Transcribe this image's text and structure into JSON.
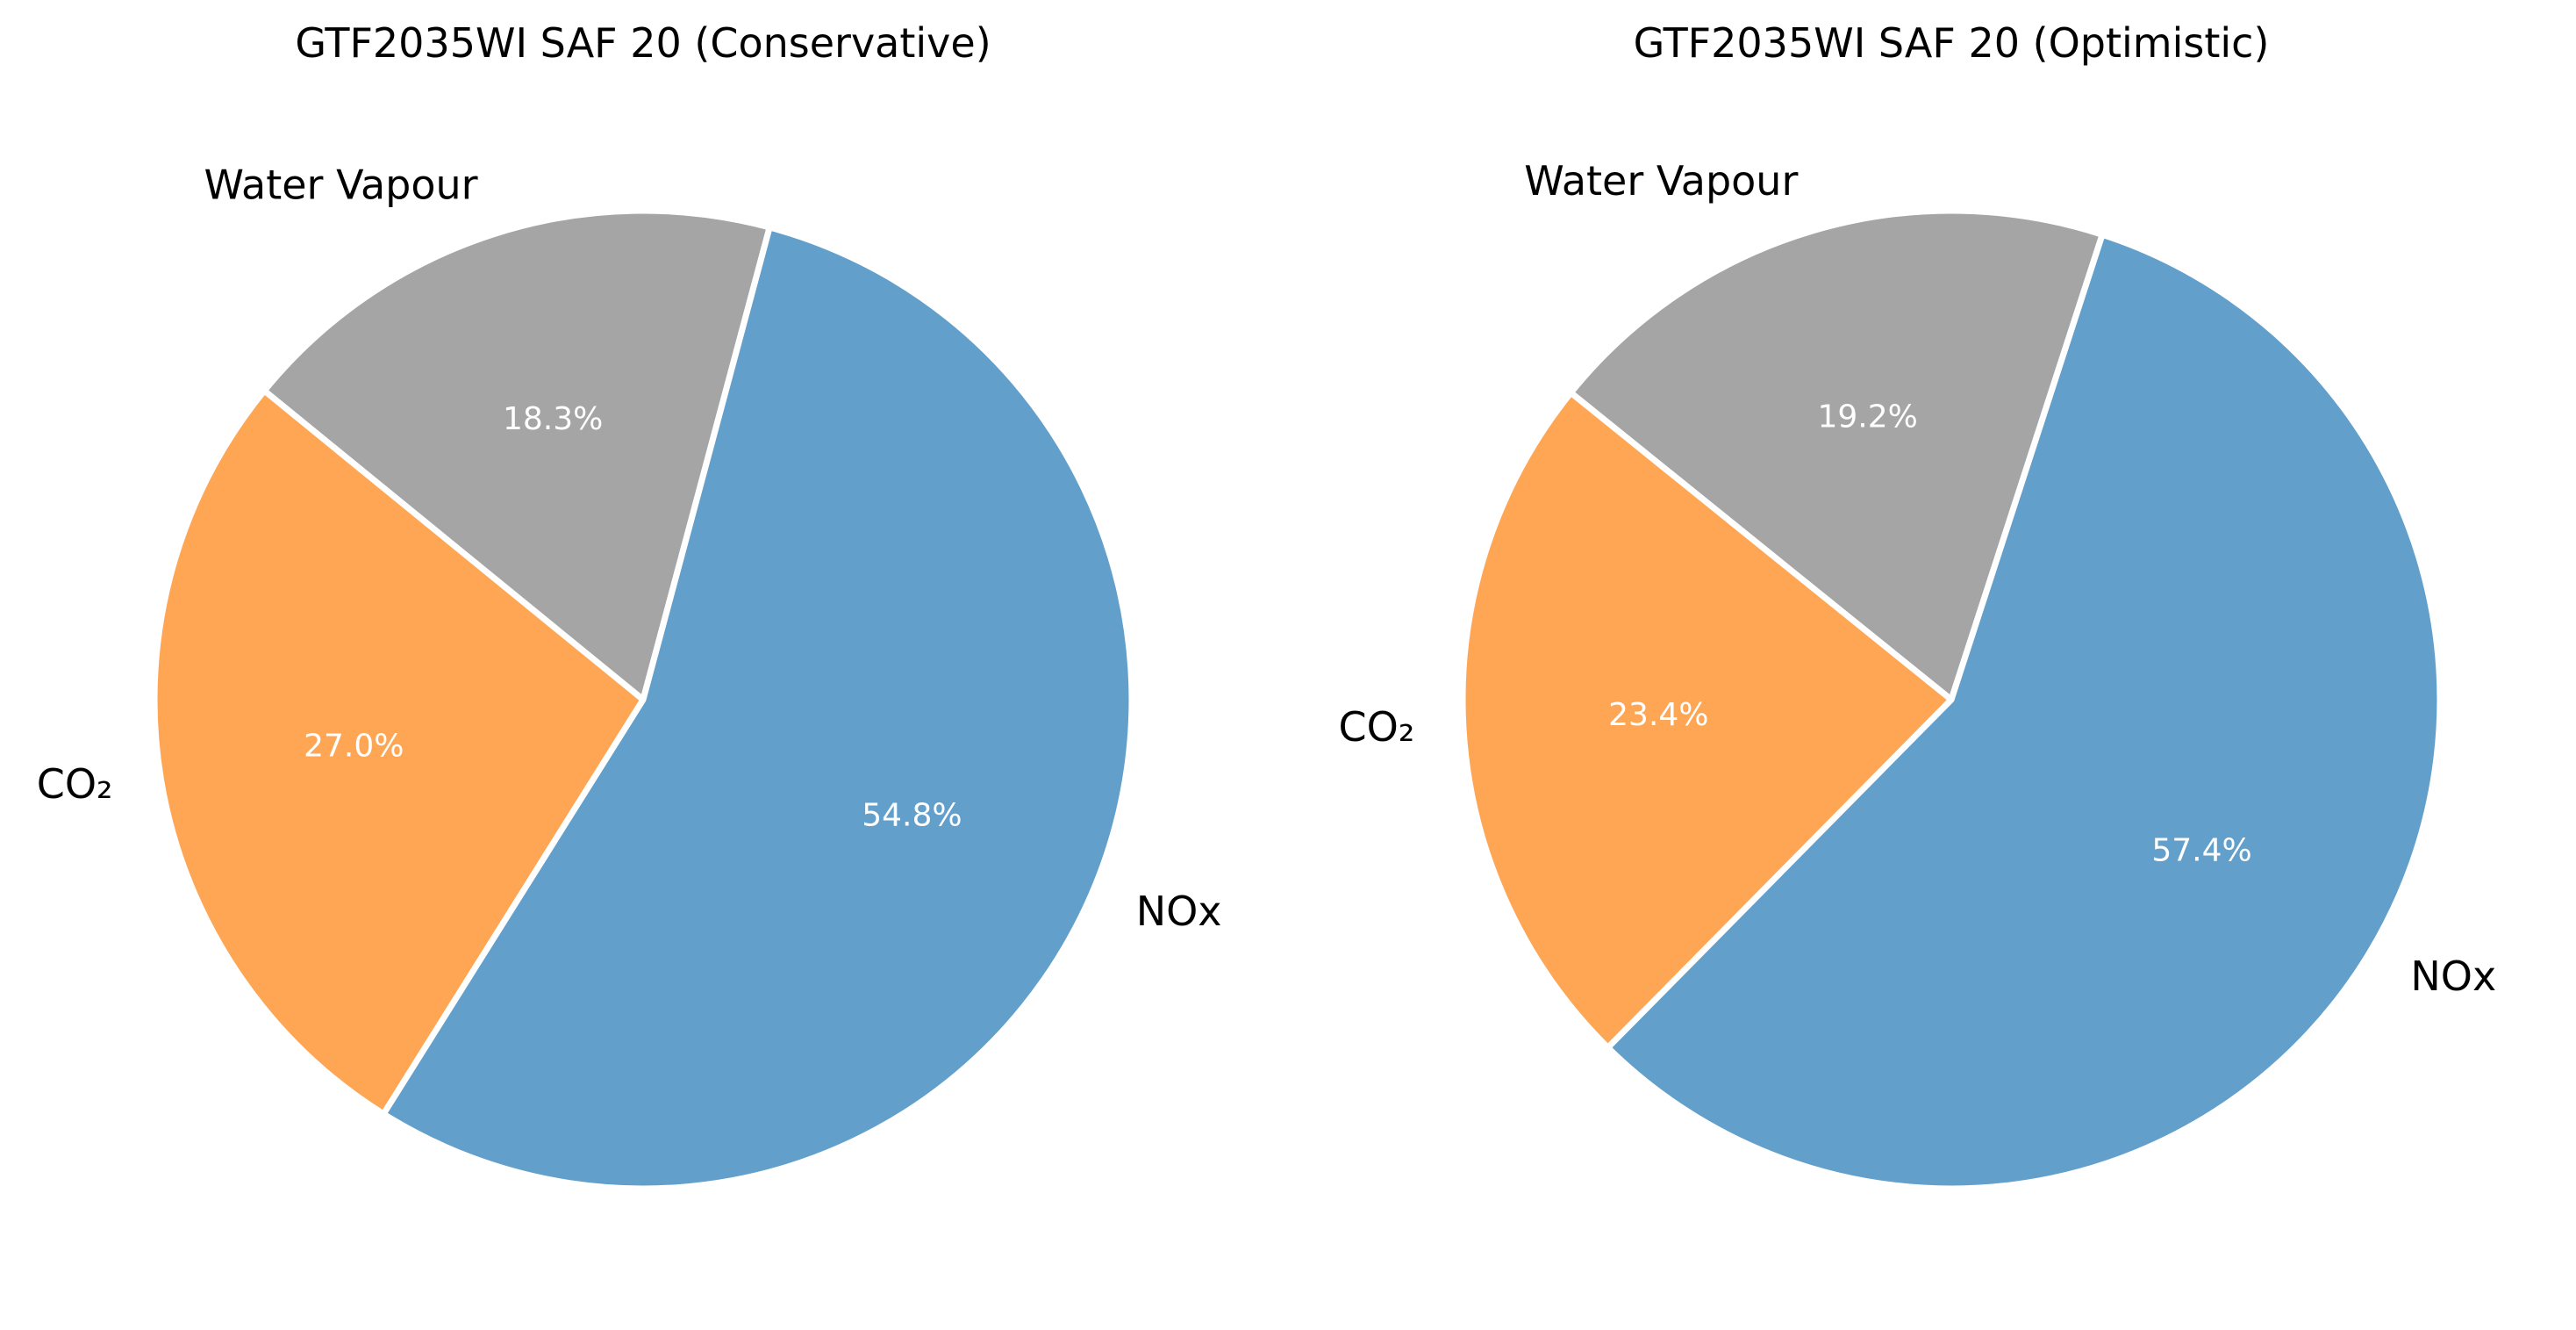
{
  "chart_data": [
    {
      "type": "pie",
      "title": "GTF2035WI SAF 20 (Conservative)",
      "start_angle_deg": 75,
      "direction": "counterclockwise",
      "slices": [
        {
          "label": "Water Vapour",
          "value": 18.3,
          "pct_label": "18.3%",
          "color": "#a5a5a5"
        },
        {
          "label": "CO₂",
          "value": 27.0,
          "pct_label": "27.0%",
          "color": "#ffa655"
        },
        {
          "label": "NOx",
          "value": 54.8,
          "pct_label": "54.8%",
          "color": "#639fcb"
        }
      ]
    },
    {
      "type": "pie",
      "title": "GTF2035WI SAF 20 (Optimistic)",
      "start_angle_deg": 72,
      "direction": "counterclockwise",
      "slices": [
        {
          "label": "Water Vapour",
          "value": 19.2,
          "pct_label": "19.2%",
          "color": "#a5a5a5"
        },
        {
          "label": "CO₂",
          "value": 23.4,
          "pct_label": "23.4%",
          "color": "#ffa655"
        },
        {
          "label": "NOx",
          "value": 57.4,
          "pct_label": "57.4%",
          "color": "#639fcb"
        }
      ]
    }
  ]
}
